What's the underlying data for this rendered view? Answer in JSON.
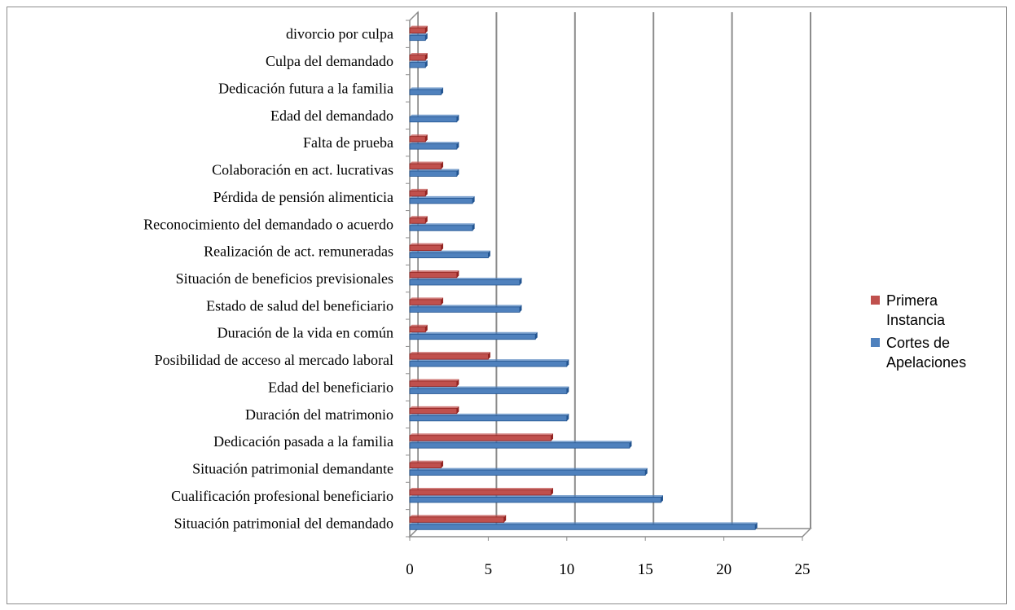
{
  "chart_data": {
    "type": "bar",
    "orientation": "horizontal",
    "categories": [
      "Situación patrimonial  del demandado",
      "Cualificación  profesional beneficiario",
      "Situación patrimonial  demandante",
      "Dedicación pasada a la familia",
      "Duración del matrimonio",
      "Edad del beneficiario",
      "Posibilidad de acceso al mercado laboral",
      "Duración de la vida en común",
      "Estado de salud del beneficiario",
      "Situación de beneficios previsionales",
      "Realización  de act. remuneradas",
      "Reconocimiento  del demandado  o acuerdo",
      "Pérdida de pensión alimenticia",
      "Colaboración en act.  lucrativas",
      "Falta de prueba",
      "Edad del demandado",
      "Dedicación futura a la familia",
      "Culpa del demandado",
      "divorcio por culpa"
    ],
    "series": [
      {
        "name": "Primera Instancia",
        "color": "#c0504d",
        "values": [
          6,
          9,
          2,
          9,
          3,
          3,
          5,
          1,
          2,
          3,
          2,
          1,
          1,
          2,
          1,
          0,
          0,
          1,
          1
        ]
      },
      {
        "name": "Cortes de Apelaciones",
        "color": "#4f81bd",
        "values": [
          22,
          16,
          15,
          14,
          10,
          10,
          10,
          8,
          7,
          7,
          5,
          4,
          4,
          3,
          3,
          3,
          2,
          1,
          1
        ]
      }
    ],
    "xlim": [
      0,
      25
    ],
    "xticks": [
      "0",
      "5",
      "10",
      "15",
      "20",
      "25"
    ],
    "grid": true,
    "legend_position": "right",
    "legend_labels": [
      {
        "line1": "Primera",
        "line2": "Instancia"
      },
      {
        "line1": "Cortes de",
        "line2": "Apelaciones"
      }
    ]
  }
}
